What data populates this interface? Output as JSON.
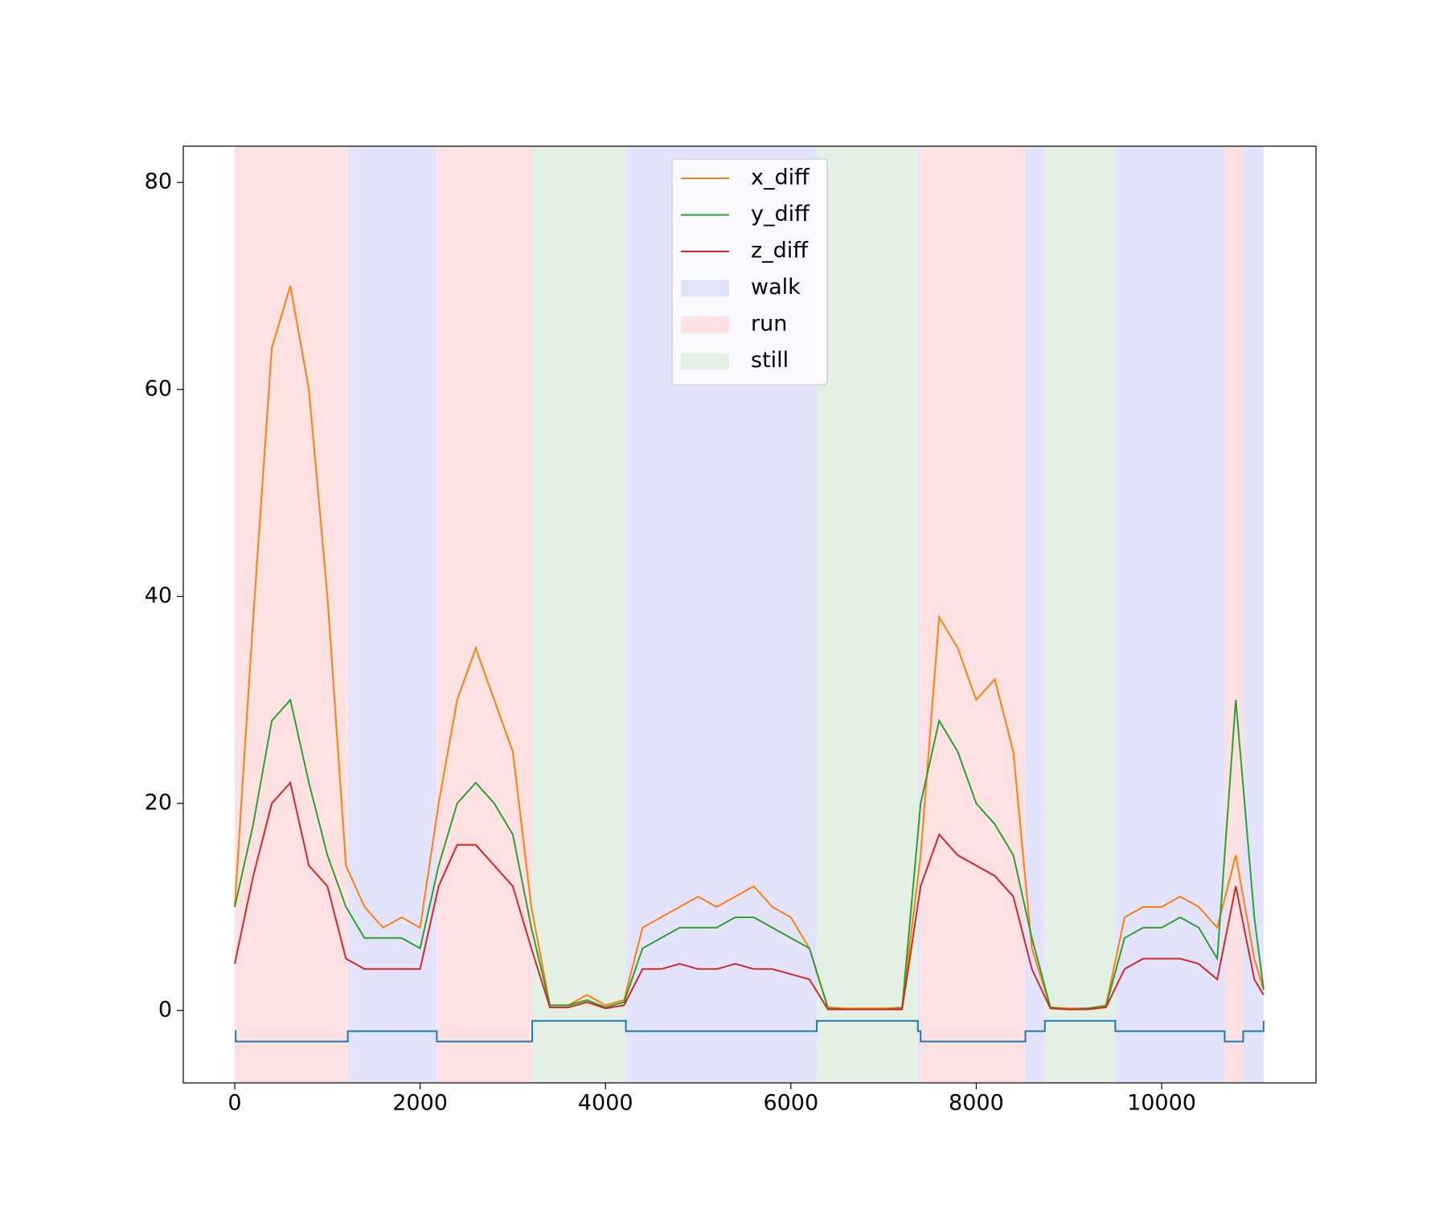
{
  "chart_data": {
    "type": "line",
    "xlim": [
      -555,
      11665
    ],
    "ylim": [
      -7,
      83.5
    ],
    "xticks": [
      0,
      2000,
      4000,
      6000,
      8000,
      10000
    ],
    "yticks": [
      0,
      20,
      40,
      60,
      80
    ],
    "x": [
      0,
      200,
      400,
      600,
      800,
      1000,
      1200,
      1400,
      1600,
      1800,
      2000,
      2200,
      2400,
      2600,
      2800,
      3000,
      3200,
      3400,
      3600,
      3800,
      4000,
      4200,
      4400,
      4600,
      4800,
      5000,
      5200,
      5400,
      5600,
      5800,
      6000,
      6200,
      6400,
      6600,
      6800,
      7000,
      7200,
      7400,
      7600,
      7800,
      8000,
      8200,
      8400,
      8600,
      8800,
      9000,
      9200,
      9400,
      9600,
      9800,
      10000,
      10200,
      10400,
      10600,
      10800,
      11000,
      11100
    ],
    "series": [
      {
        "color": "#1f77b4",
        "x": [
          0,
          10,
          10,
          1220,
          1220,
          2180,
          2180,
          3210,
          3210,
          4220,
          4220,
          6280,
          6280,
          7370,
          7370,
          7400,
          7400,
          8530,
          8530,
          8740,
          8740,
          9500,
          9500,
          10680,
          10680,
          10880,
          10880,
          11100,
          11100
        ],
        "values": [
          -2,
          -2,
          -3,
          -3,
          -2,
          -2,
          -3,
          -3,
          -1,
          -1,
          -2,
          -2,
          -1,
          -1,
          -2,
          -2,
          -3,
          -3,
          -2,
          -2,
          -1,
          -1,
          -2,
          -2,
          -3,
          -3,
          -2,
          -2,
          -1
        ]
      },
      {
        "name": "x_diff",
        "color": "#ff7f0e",
        "values": [
          10,
          38,
          64,
          70,
          60,
          40,
          14,
          10,
          8,
          9,
          8,
          20,
          30,
          35,
          30,
          25,
          10,
          0.5,
          0.5,
          1.5,
          0.5,
          1,
          8,
          9,
          10,
          11,
          10,
          11,
          12,
          10,
          9,
          6,
          0.3,
          0.2,
          0.2,
          0.2,
          0.3,
          15,
          38,
          35,
          30,
          32,
          25,
          6,
          0.3,
          0.2,
          0.2,
          0.5,
          9,
          10,
          10,
          11,
          10,
          8,
          15,
          5,
          2
        ]
      },
      {
        "name": "y_diff",
        "color": "#2ca02c",
        "values": [
          10,
          18,
          28,
          30,
          22,
          15,
          10,
          7,
          7,
          7,
          6,
          14,
          20,
          22,
          20,
          17,
          8,
          0.5,
          0.5,
          1,
          0.3,
          0.8,
          6,
          7,
          8,
          8,
          8,
          9,
          9,
          8,
          7,
          6,
          0.2,
          0.1,
          0.1,
          0.1,
          0.2,
          20,
          28,
          25,
          20,
          18,
          15,
          7,
          0.3,
          0.1,
          0.2,
          0.4,
          7,
          8,
          8,
          9,
          8,
          5,
          30,
          9,
          2
        ]
      },
      {
        "name": "z_diff",
        "color": "#d62728",
        "values": [
          4.5,
          13,
          20,
          22,
          14,
          12,
          5,
          4,
          4,
          4,
          4,
          12,
          16,
          16,
          14,
          12,
          6,
          0.3,
          0.3,
          0.8,
          0.2,
          0.5,
          4,
          4,
          4.5,
          4,
          4,
          4.5,
          4,
          4,
          3.5,
          3,
          0.1,
          0.1,
          0.1,
          0.1,
          0.1,
          12,
          17,
          15,
          14,
          13,
          11,
          4,
          0.2,
          0.1,
          0.1,
          0.3,
          4,
          5,
          5,
          5,
          4.5,
          3,
          12,
          3,
          1.5
        ]
      }
    ],
    "bands": [
      {
        "name": "walk",
        "color": "#e3e3fb",
        "ranges": [
          [
            1220,
            2180
          ],
          [
            4220,
            6280
          ],
          [
            7370,
            7400
          ],
          [
            8530,
            8740
          ],
          [
            9500,
            10680
          ],
          [
            10880,
            11100
          ]
        ]
      },
      {
        "name": "run",
        "color": "#fde1e3",
        "ranges": [
          [
            0,
            1220
          ],
          [
            2180,
            3210
          ],
          [
            7400,
            8530
          ],
          [
            10680,
            10880
          ]
        ]
      },
      {
        "name": "still",
        "color": "#e5f0e5",
        "ranges": [
          [
            3210,
            4220
          ],
          [
            6280,
            7370
          ],
          [
            8740,
            9500
          ]
        ]
      }
    ]
  }
}
